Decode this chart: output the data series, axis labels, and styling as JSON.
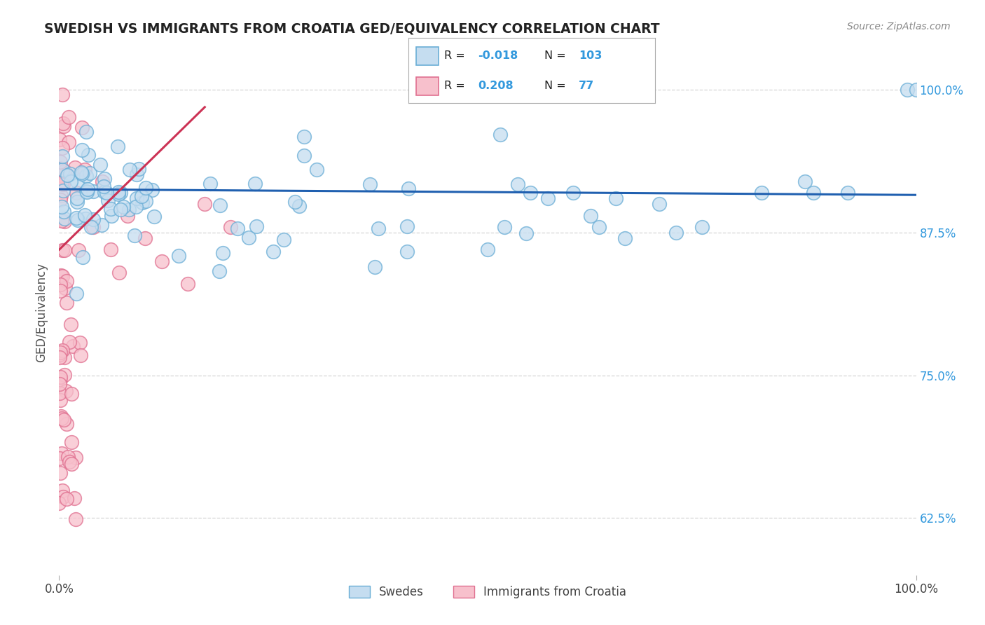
{
  "title": "SWEDISH VS IMMIGRANTS FROM CROATIA GED/EQUIVALENCY CORRELATION CHART",
  "source": "Source: ZipAtlas.com",
  "ylabel": "GED/Equivalency",
  "ytick_labels": [
    "100.0%",
    "87.5%",
    "75.0%",
    "62.5%"
  ],
  "ytick_values": [
    1.0,
    0.875,
    0.75,
    0.625
  ],
  "legend_blue_label": "Swedes",
  "legend_pink_label": "Immigrants from Croatia",
  "legend_blue_R": "-0.018",
  "legend_blue_N": "103",
  "legend_pink_R": "0.208",
  "legend_pink_N": "77",
  "blue_fill": "#c5ddf0",
  "blue_edge": "#6aaed6",
  "pink_fill": "#f7c0cc",
  "pink_edge": "#e07090",
  "blue_trend_color": "#2060b0",
  "pink_trend_color": "#cc3355",
  "background_color": "#ffffff",
  "grid_color": "#cccccc",
  "title_color": "#222222",
  "source_color": "#888888",
  "ytick_color": "#3399dd",
  "ylabel_color": "#555555",
  "legend_text_color": "#222222",
  "legend_value_color": "#3399dd",
  "ylim_min": 0.575,
  "ylim_max": 1.035,
  "xlim_min": 0.0,
  "xlim_max": 1.0,
  "blue_trend_y0": 0.913,
  "blue_trend_y1": 0.908,
  "pink_trend_x0": 0.0,
  "pink_trend_x1": 0.17,
  "pink_trend_y0": 0.86,
  "pink_trend_y1": 0.985
}
